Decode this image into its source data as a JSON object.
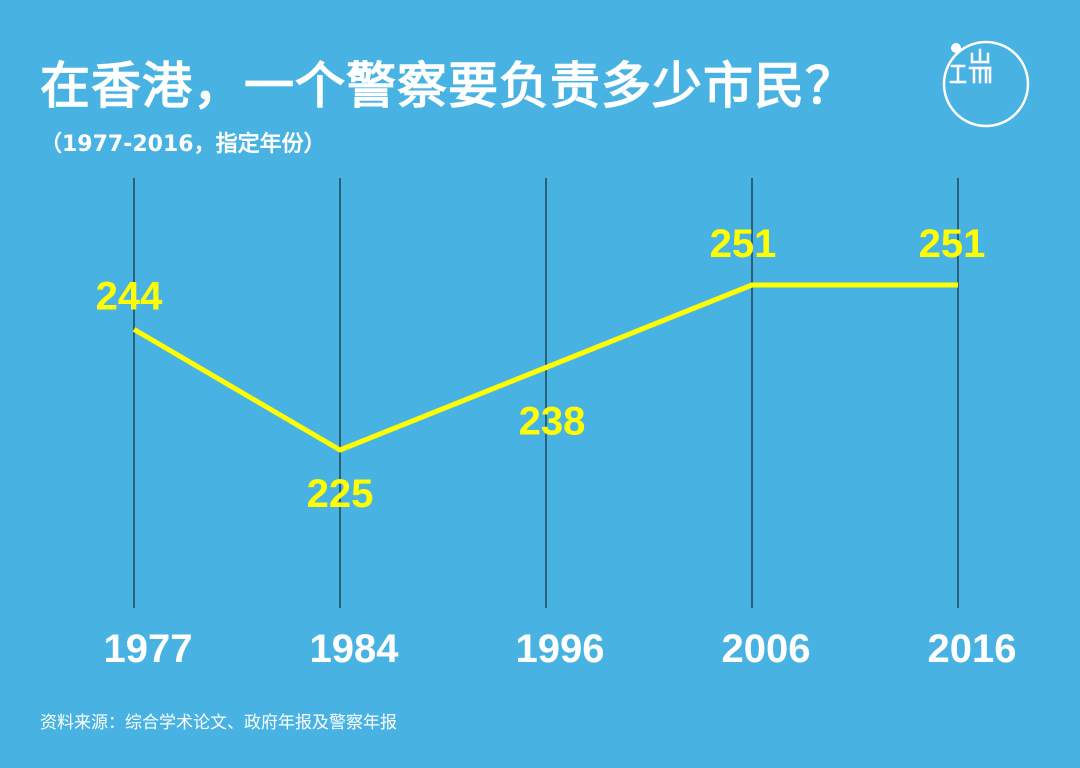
{
  "title": "在香港，一个警察要负责多少市民？",
  "subtitle": "（1977-2016，指定年份）",
  "source": "资料来源：综合学术论文、政府年报及警察年报",
  "logo": {
    "icon": "duan-logo-icon",
    "text": "端"
  },
  "colors": {
    "background": "#48b3e3",
    "line": "#ffff00",
    "text": "#ffffff",
    "gridline": "#1a2a33"
  },
  "chart_data": {
    "type": "line",
    "categories": [
      "1977",
      "1984",
      "1996",
      "2006",
      "2016"
    ],
    "values": [
      244,
      225,
      238,
      251,
      251
    ],
    "data_labels": [
      "244",
      "225",
      "238",
      "251",
      "251"
    ],
    "title": "在香港，一个警察要负责多少市民？",
    "subtitle": "（1977-2016，指定年份）",
    "xlabel": "",
    "ylabel": "",
    "grid": "vertical",
    "legend": "none"
  }
}
